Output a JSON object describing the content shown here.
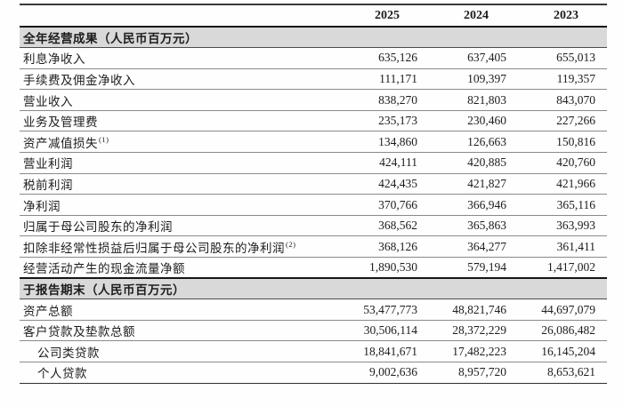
{
  "colors": {
    "section_band": "#d9d9d9",
    "text": "#1c1c1c",
    "rule_thin": "#8a8a8a",
    "rule_thick": "#151515"
  },
  "table": {
    "columns": [
      "2025",
      "2024",
      "2023"
    ],
    "sections": [
      {
        "header": "全年经营成果（人民币百万元）",
        "rows": [
          {
            "label": "利息净收入",
            "values": [
              "635,126",
              "637,405",
              "655,013"
            ]
          },
          {
            "label": "手续费及佣金净收入",
            "values": [
              "111,171",
              "109,397",
              "119,357"
            ]
          },
          {
            "label": "营业收入",
            "values": [
              "838,270",
              "821,803",
              "843,070"
            ]
          },
          {
            "label": "业务及管理费",
            "values": [
              "235,173",
              "230,460",
              "227,266"
            ]
          },
          {
            "label": "资产减值损失",
            "sup": "(1)",
            "values": [
              "134,860",
              "126,663",
              "150,816"
            ]
          },
          {
            "label": "营业利润",
            "values": [
              "424,111",
              "420,885",
              "420,760"
            ]
          },
          {
            "label": "税前利润",
            "values": [
              "424,435",
              "421,827",
              "421,966"
            ]
          },
          {
            "label": "净利润",
            "values": [
              "370,766",
              "366,946",
              "365,116"
            ]
          },
          {
            "label": "归属于母公司股东的净利润",
            "values": [
              "368,562",
              "365,863",
              "363,993"
            ]
          },
          {
            "label": "扣除非经常性损益后归属于母公司股东的净利润",
            "sup": "(2)",
            "values": [
              "368,126",
              "364,277",
              "361,411"
            ]
          },
          {
            "label": "经营活动产生的现金流量净额",
            "values": [
              "1,890,530",
              "579,194",
              "1,417,002"
            ]
          }
        ]
      },
      {
        "header": "于报告期末（人民币百万元）",
        "rows": [
          {
            "label": "资产总额",
            "values": [
              "53,477,773",
              "48,821,746",
              "44,697,079"
            ]
          },
          {
            "label": "客户贷款及垫款总额",
            "values": [
              "30,506,114",
              "28,372,229",
              "26,086,482"
            ]
          },
          {
            "label": "公司类贷款",
            "indent": true,
            "values": [
              "18,841,671",
              "17,482,223",
              "16,145,204"
            ]
          },
          {
            "label": "个人贷款",
            "indent": true,
            "values": [
              "9,002,636",
              "8,957,720",
              "8,653,621"
            ]
          }
        ]
      }
    ]
  }
}
